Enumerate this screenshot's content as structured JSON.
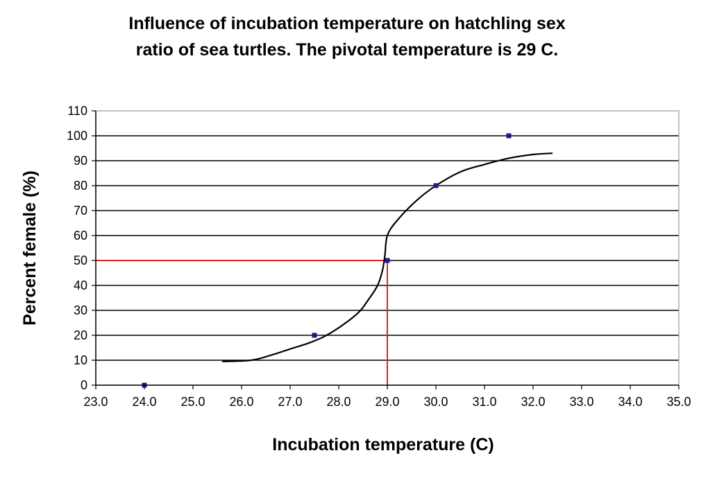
{
  "chart_data": {
    "type": "scatter",
    "title_lines": [
      "Influence of incubation temperature on hatchling sex",
      "ratio of sea turtles.  The pivotal temperature is 29 C."
    ],
    "xlabel": "Incubation temperature (C)",
    "ylabel": "Percent female (%)",
    "xlim": [
      23.0,
      35.0
    ],
    "ylim": [
      0,
      110
    ],
    "x_ticks": [
      23.0,
      24.0,
      25.0,
      26.0,
      27.0,
      28.0,
      29.0,
      30.0,
      31.0,
      32.0,
      33.0,
      34.0,
      35.0
    ],
    "x_tick_labels": [
      "23.0",
      "24.0",
      "25.0",
      "26.0",
      "27.0",
      "28.0",
      "29.0",
      "30.0",
      "31.0",
      "32.0",
      "33.0",
      "34.0",
      "35.0"
    ],
    "y_ticks": [
      0,
      10,
      20,
      30,
      40,
      50,
      60,
      70,
      80,
      90,
      100,
      110
    ],
    "y_tick_labels": [
      "0",
      "10",
      "20",
      "30",
      "40",
      "50",
      "60",
      "70",
      "80",
      "90",
      "100",
      "110"
    ],
    "grid": "horizontal",
    "points": [
      {
        "x": 24.0,
        "y": 0
      },
      {
        "x": 27.5,
        "y": 20
      },
      {
        "x": 29.0,
        "y": 50
      },
      {
        "x": 30.0,
        "y": 80
      },
      {
        "x": 31.5,
        "y": 100
      }
    ],
    "curve": [
      [
        25.6,
        9.5
      ],
      [
        26.2,
        10.0
      ],
      [
        26.6,
        12.0
      ],
      [
        27.0,
        14.5
      ],
      [
        27.4,
        17.0
      ],
      [
        27.7,
        19.5
      ],
      [
        28.0,
        23.0
      ],
      [
        28.4,
        29.0
      ],
      [
        28.6,
        34.0
      ],
      [
        28.8,
        40.0
      ],
      [
        28.9,
        46.0
      ],
      [
        28.95,
        52.0
      ],
      [
        29.0,
        60.0
      ],
      [
        29.2,
        66.0
      ],
      [
        29.6,
        74.0
      ],
      [
        30.0,
        80.0
      ],
      [
        30.5,
        85.5
      ],
      [
        31.0,
        88.5
      ],
      [
        31.5,
        91.0
      ],
      [
        32.0,
        92.5
      ],
      [
        32.4,
        93.0
      ]
    ],
    "pivot": {
      "x": 29.0,
      "y": 50
    },
    "colors": {
      "points": "#1a1a8c",
      "curve": "#000000",
      "pivot_line": "#d9261c",
      "grid": "#000000",
      "frame": "#9a9a9a"
    }
  }
}
